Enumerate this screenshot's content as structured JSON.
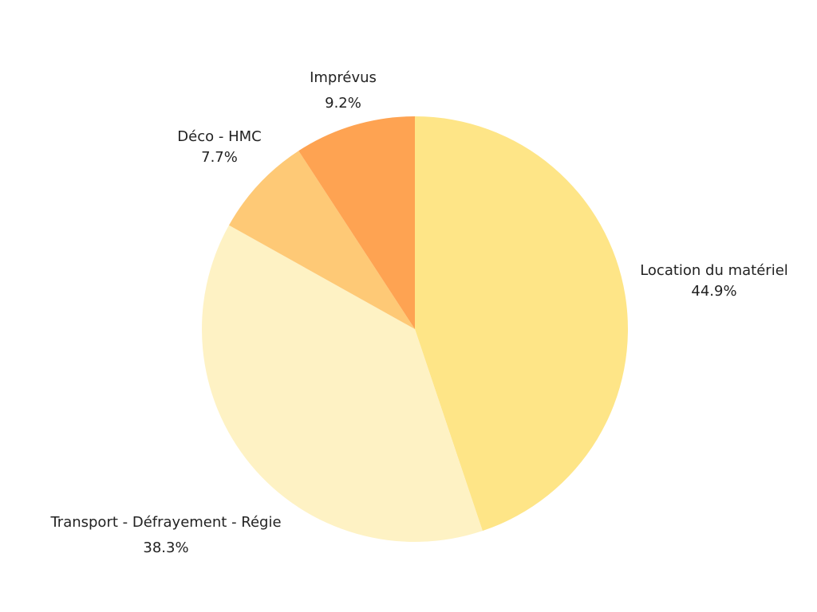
{
  "chart_data": {
    "type": "pie",
    "categories": [
      "Location du matériel",
      "Transport - Défrayement - Régie",
      "Déco - HMC",
      "Imprévus"
    ],
    "values": [
      44.9,
      38.3,
      7.7,
      9.2
    ],
    "value_labels": [
      "44.9%",
      "38.3%",
      "7.7%",
      "9.2%"
    ],
    "colors": [
      "#fee587",
      "#fef2c4",
      "#fec976",
      "#fea352"
    ]
  }
}
